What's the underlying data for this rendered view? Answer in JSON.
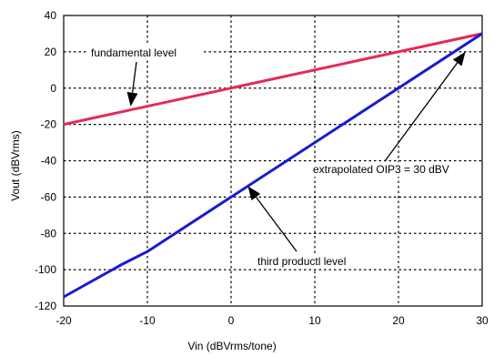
{
  "chart_data": {
    "type": "line",
    "xlabel": "Vin (dBVrms/tone)",
    "ylabel": "Vout (dBVrms)",
    "xlim": [
      -20,
      30
    ],
    "ylim": [
      -120,
      40
    ],
    "x_ticks": [
      "-20",
      "-10",
      "0",
      "10",
      "20",
      "30"
    ],
    "y_ticks": [
      "40",
      "20",
      "0",
      "-20",
      "-40",
      "-60",
      "-80",
      "-100",
      "-120"
    ],
    "grid": true,
    "series": [
      {
        "name": "fundamental level",
        "color": "#e8285a",
        "x": [
          -20,
          30
        ],
        "y": [
          -20,
          30
        ]
      },
      {
        "name": "third productl level",
        "color": "#1a1ad0",
        "x": [
          -20,
          -13,
          -10,
          30
        ],
        "y": [
          -115,
          -97,
          -90,
          30
        ]
      }
    ],
    "annotations": [
      {
        "text": "fundamental level",
        "arrow_to": [
          -12,
          -10
        ]
      },
      {
        "text": "third productl level",
        "arrow_to": [
          2,
          -54
        ]
      },
      {
        "text": "extrapolated OIP3 = 30 dBV",
        "arrow_to": [
          28,
          20
        ]
      }
    ]
  }
}
